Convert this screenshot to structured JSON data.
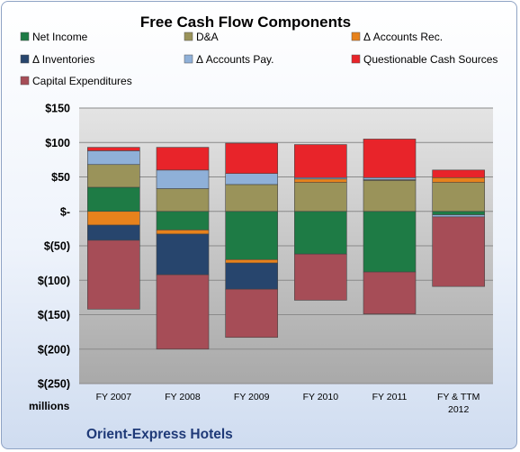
{
  "chart_data": {
    "type": "bar",
    "stacked": true,
    "title": "Free Cash Flow Components",
    "company": "Orient-Express Hotels",
    "unit_label": "millions",
    "categories": [
      [
        "FY 2007"
      ],
      [
        "FY 2008"
      ],
      [
        "FY 2009"
      ],
      [
        "FY 2010"
      ],
      [
        "FY 2011"
      ],
      [
        "FY & TTM",
        "2012"
      ]
    ],
    "ylim": [
      -250,
      150
    ],
    "yticks": [
      150,
      100,
      50,
      0,
      -50,
      -100,
      -150,
      -200,
      -250
    ],
    "ytick_labels": [
      "$150",
      "$100",
      "$50",
      "$-",
      "$(50)",
      "$(100)",
      "$(150)",
      "$(200)",
      "$(250)"
    ],
    "grid": true,
    "legend_position": "top",
    "series": [
      {
        "name": "Net Income",
        "color": "#1e7b45",
        "values": [
          35,
          -27,
          -70,
          -62,
          -88,
          -5
        ]
      },
      {
        "name": "D&A",
        "color": "#9a935a",
        "values": [
          33,
          33,
          39,
          42,
          45,
          42
        ]
      },
      {
        "name": "Δ Accounts Rec.",
        "color": "#e7821c",
        "values": [
          -20,
          -6,
          -5,
          5,
          1,
          7
        ]
      },
      {
        "name": "Δ Inventories",
        "color": "#27456d",
        "values": [
          -22,
          -59,
          -38,
          0,
          0,
          0
        ]
      },
      {
        "name": "Δ Accounts Pay.",
        "color": "#8fb0d8",
        "values": [
          20,
          27,
          16,
          2,
          3,
          -3
        ]
      },
      {
        "name": "Questionable Cash Sources",
        "color": "#e8242a",
        "values": [
          5,
          33,
          44,
          48,
          56,
          11
        ]
      },
      {
        "name": "Capital Expenditures",
        "color": "#a64d57",
        "values": [
          -100,
          -108,
          -70,
          -67,
          -61,
          -101
        ]
      }
    ]
  }
}
